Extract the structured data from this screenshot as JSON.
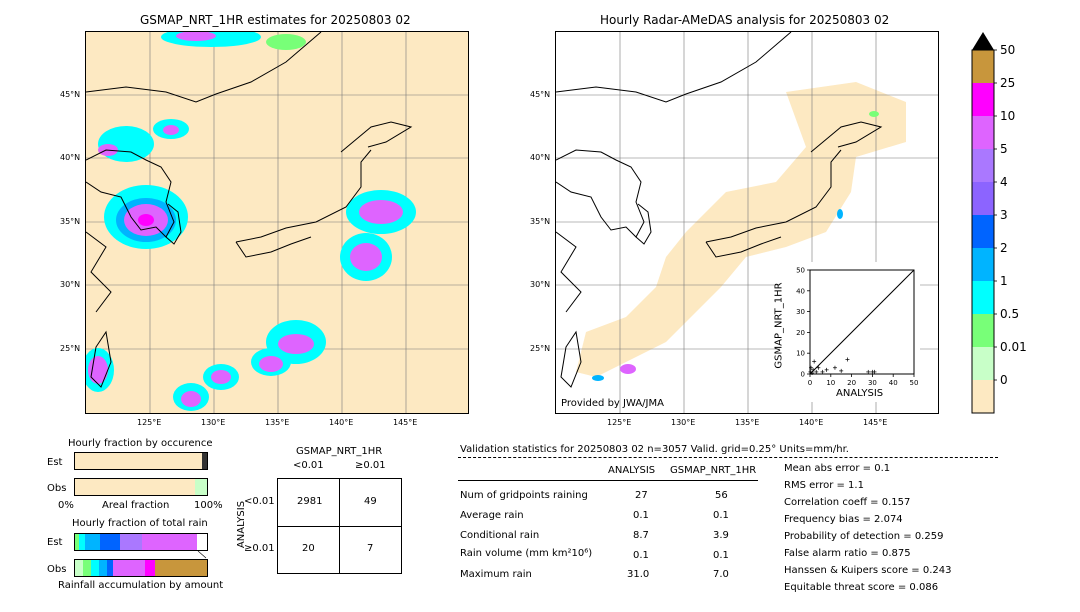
{
  "left_map": {
    "title": "GSMAP_NRT_1HR estimates for 20250803 02",
    "lat_labels": [
      "45°N",
      "40°N",
      "35°N",
      "30°N",
      "25°N"
    ],
    "lon_labels": [
      "125°E",
      "130°E",
      "135°E",
      "140°E",
      "145°E"
    ]
  },
  "right_map": {
    "title": "Hourly Radar-AMeDAS analysis for 20250803 02",
    "lat_labels": [
      "45°N",
      "40°N",
      "35°N",
      "30°N",
      "25°N"
    ],
    "lon_labels": [
      "125°E",
      "130°E",
      "135°E",
      "140°E",
      "145°E"
    ],
    "credit": "Provided by JWA/JMA"
  },
  "colorbar": {
    "labels": [
      "50",
      "25",
      "10",
      "5",
      "4",
      "3",
      "2",
      "1",
      "0.5",
      "0.01",
      "0"
    ],
    "colors": [
      "#c8963c",
      "#ff00ff",
      "#de64ff",
      "#aa78ff",
      "#8c64ff",
      "#0064ff",
      "#00b4ff",
      "#00ffff",
      "#78ff78",
      "#c8ffc8",
      "#fde9c2"
    ]
  },
  "scatter_inset": {
    "xlabel": "ANALYSIS",
    "ylabel": "GSMAP_NRT_1HR",
    "x_ticks": [
      "0",
      "10",
      "20",
      "30",
      "40",
      "50"
    ],
    "y_ticks": [
      "0",
      "10",
      "20",
      "30",
      "40",
      "50"
    ]
  },
  "fraction_occurrence": {
    "title": "Hourly fraction by occurence",
    "row_labels": [
      "Est",
      "Obs"
    ],
    "axis_left": "0%",
    "axis_mid": "Areal fraction",
    "axis_right": "100%"
  },
  "fraction_total": {
    "title": "Hourly fraction of total rain",
    "row_labels": [
      "Est",
      "Obs"
    ],
    "footer": "Rainfall accumulation by amount"
  },
  "contingency": {
    "title": "GSMAP_NRT_1HR",
    "col_headers": [
      "<0.01",
      "≥0.01"
    ],
    "row_axis": "ANALYSIS",
    "row_headers": [
      "<0.01",
      "≥0.01"
    ],
    "cells": [
      [
        "2981",
        "49"
      ],
      [
        "20",
        "7"
      ]
    ]
  },
  "validation": {
    "header": "Validation statistics for 20250803 02  n=3057 Valid. grid=0.25° Units=mm/hr.",
    "col_headers": [
      "ANALYSIS",
      "GSMAP_NRT_1HR"
    ],
    "rows": [
      {
        "label": "Num of gridpoints raining",
        "a": "27",
        "g": "56"
      },
      {
        "label": "Average rain",
        "a": "0.1",
        "g": "0.1"
      },
      {
        "label": "Conditional rain",
        "a": "8.7",
        "g": "3.9"
      },
      {
        "label": "Rain volume (mm km²10⁶)",
        "a": "0.1",
        "g": "0.1"
      },
      {
        "label": "Maximum rain",
        "a": "31.0",
        "g": "7.0"
      }
    ],
    "scores": [
      "Mean abs error =    0.1",
      "RMS error =    1.1",
      "Correlation coeff =  0.157",
      "Frequency bias =  2.074",
      "Probability of detection =  0.259",
      "False alarm ratio =  0.875",
      "Hanssen & Kuipers score =  0.243",
      "Equitable threat score =  0.086"
    ]
  },
  "chart_data": {
    "type": "scatter",
    "title": "",
    "xlabel": "ANALYSIS",
    "ylabel": "GSMAP_NRT_1HR",
    "xlim": [
      0,
      50
    ],
    "ylim": [
      0,
      50
    ],
    "points": [
      {
        "x": 0.2,
        "y": 1.0
      },
      {
        "x": 0.5,
        "y": 3.0
      },
      {
        "x": 1.0,
        "y": 0.5
      },
      {
        "x": 1.5,
        "y": 2.0
      },
      {
        "x": 2.0,
        "y": 6.0
      },
      {
        "x": 3.0,
        "y": 1.0
      },
      {
        "x": 4.0,
        "y": 3.0
      },
      {
        "x": 6.0,
        "y": 1.0
      },
      {
        "x": 8.0,
        "y": 2.0
      },
      {
        "x": 12.0,
        "y": 3.0
      },
      {
        "x": 15.0,
        "y": 1.5
      },
      {
        "x": 18.0,
        "y": 7.0
      },
      {
        "x": 28.0,
        "y": 1.0
      },
      {
        "x": 30.0,
        "y": 1.0
      },
      {
        "x": 31.0,
        "y": 1.0
      }
    ]
  }
}
